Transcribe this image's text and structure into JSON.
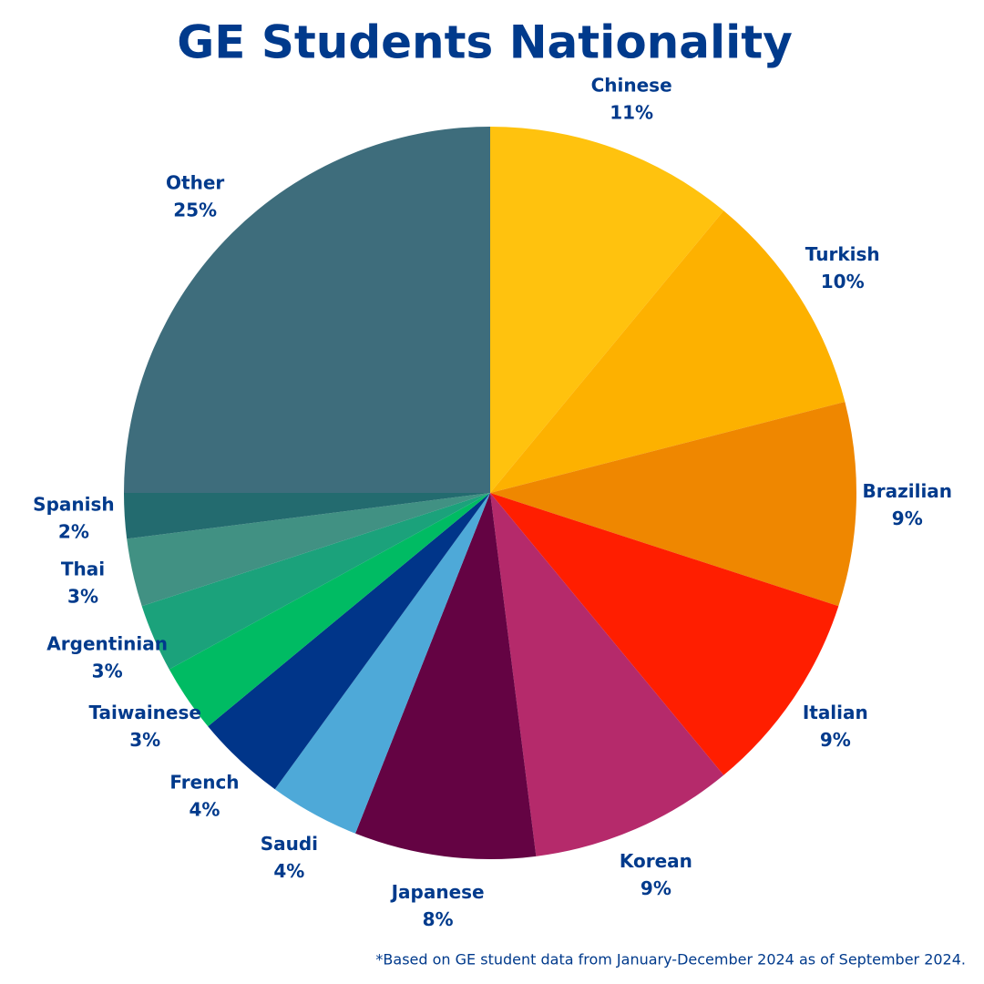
{
  "chart_data": {
    "type": "pie",
    "title": "GE Students Nationality",
    "categories": [
      "Chinese",
      "Turkish",
      "Brazilian",
      "Italian",
      "Korean",
      "Japanese",
      "Saudi",
      "French",
      "Taiwainese",
      "Argentinian",
      "Thai",
      "Spanish",
      "Other"
    ],
    "values": [
      11,
      10,
      9,
      9,
      9,
      8,
      4,
      4,
      3,
      3,
      3,
      2,
      25
    ],
    "value_labels": [
      "11%",
      "10%",
      "9%",
      "9%",
      "9%",
      "8%",
      "4%",
      "4%",
      "3%",
      "3%",
      "3%",
      "2%",
      "25%"
    ],
    "colors": [
      "#FFC20E",
      "#FDB100",
      "#EF8700",
      "#FF1E00",
      "#B52A6B",
      "#640343",
      "#4EA9D8",
      "#003589",
      "#00BB63",
      "#1BA27B",
      "#419183",
      "#236B6F",
      "#3E6D7C"
    ],
    "footnote": "*Based on GE student data from January-December 2024 as of September 2024."
  }
}
